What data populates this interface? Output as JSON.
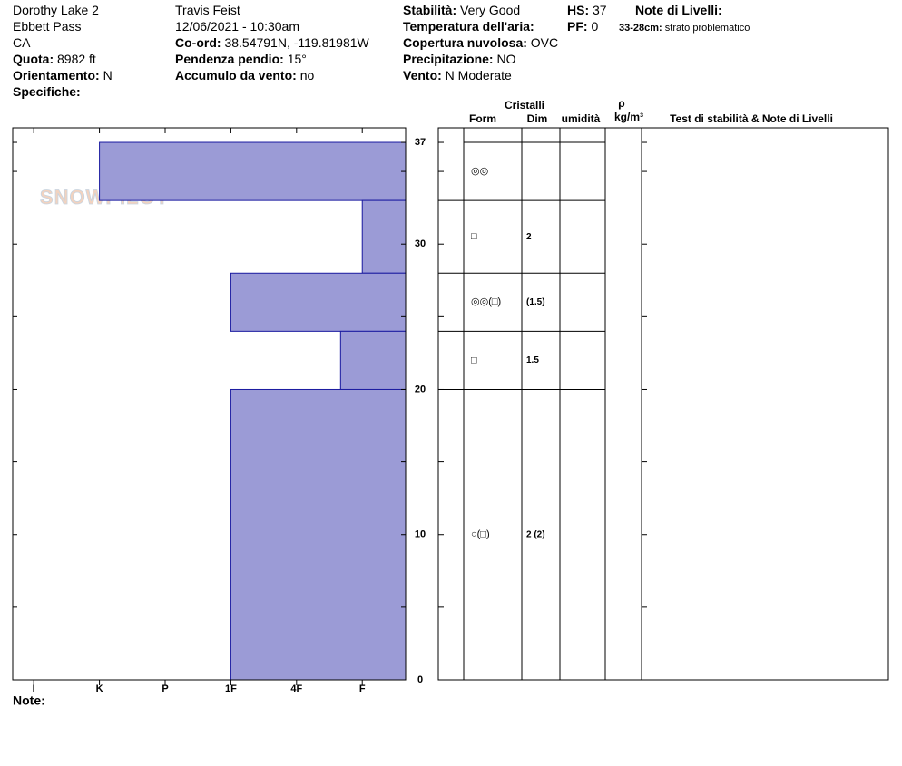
{
  "header": {
    "fields": [
      {
        "value": "Dorothy Lake 2"
      },
      {
        "value": "Ebbett Pass"
      },
      {
        "value": "CA"
      },
      {
        "label": "Quota:",
        "value": "8982 ft"
      },
      {
        "label": "Orientamento:",
        "value": "N"
      },
      {
        "label": "Specifiche:"
      },
      {
        "value": "Travis Feist"
      },
      {
        "value": "12/06/2021 - 10:30am"
      },
      {
        "label": "Co-ord:",
        "value": "38.54791N, -119.81981W"
      },
      {
        "label": "Pendenza pendio:",
        "value": "15°"
      },
      {
        "label": "Accumulo da vento:",
        "value": "no"
      },
      {
        "label": "Stabilità:",
        "value": "Very Good"
      },
      {
        "label": "Temperatura dell'aria:"
      },
      {
        "label": "Copertura nuvolosa:",
        "value": "OVC"
      },
      {
        "label": "Precipitazione:",
        "value": "NO"
      },
      {
        "label": "Vento:",
        "value": "N Moderate"
      },
      {
        "label": "HS:",
        "value": "37"
      },
      {
        "label": "PF:",
        "value": "0"
      },
      {
        "label": "Note di Livelli:"
      }
    ],
    "layer_note": {
      "label": "33-28cm:",
      "value": "strato problematico"
    }
  },
  "watermark": "SNOWPILOT",
  "table_header": {
    "group": "Cristalli",
    "form": "Form",
    "dim": "Dim",
    "moisture": "umidità",
    "density": "ρ",
    "density_unit": "kg/m³",
    "notes": "Test di stabilità & Note di Livelli"
  },
  "footer": {
    "note": "Note:"
  },
  "chart_data": {
    "type": "bar",
    "color": "#9b9bd6",
    "ylim": [
      0,
      38
    ],
    "yticks": [
      0,
      10,
      20,
      30,
      37
    ],
    "yminorticks": [
      5,
      15,
      25,
      35
    ],
    "xlim": [
      0.34,
      6.32
    ],
    "xticks": [
      {
        "value": 6,
        "label": "I"
      },
      {
        "value": 5,
        "label": "K"
      },
      {
        "value": 4,
        "label": "P"
      },
      {
        "value": 3,
        "label": "1F"
      },
      {
        "value": 2,
        "label": "4F"
      },
      {
        "value": 1,
        "label": "F"
      }
    ],
    "layers": [
      {
        "top": 37,
        "bottom": 33,
        "hardness": 5,
        "form": "◎◎",
        "dim": null
      },
      {
        "top": 33,
        "bottom": 28,
        "hardness": 1,
        "form": "□",
        "dim": "2"
      },
      {
        "top": 28,
        "bottom": 24,
        "hardness": 3,
        "form": "◎◎(□)",
        "dim": "(1.5)"
      },
      {
        "top": 24,
        "bottom": 20,
        "hardness": 1.33,
        "form": "□",
        "dim": "1.5"
      },
      {
        "top": 20,
        "bottom": 0,
        "hardness": 3,
        "form": "○(□)",
        "dim": "2 (2)"
      }
    ]
  }
}
